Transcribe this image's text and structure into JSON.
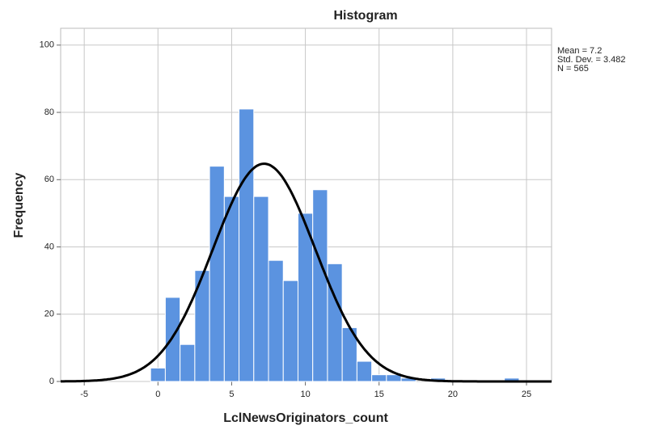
{
  "chart_data": {
    "type": "histogram",
    "title": "Histogram",
    "x_label": "LclNewsOriginators_count",
    "y_label": "Frequency",
    "bins": [
      -0.5,
      0.5,
      1.5,
      2.5,
      3.5,
      4.5,
      5.5,
      6.5,
      7.5,
      8.5,
      9.5,
      10.5,
      11.5,
      12.5,
      13.5,
      14.5,
      15.5,
      16.5,
      17.5,
      18.5,
      19.5,
      20.5,
      21.5,
      22.5,
      23.5,
      24.5
    ],
    "counts": [
      4,
      25,
      11,
      33,
      64,
      55,
      81,
      55,
      36,
      30,
      50,
      57,
      35,
      16,
      6,
      2,
      2,
      1,
      0,
      1,
      0,
      0,
      0,
      0,
      1
    ],
    "color": "#5b93e0",
    "xlim": [
      -6.6,
      26.7
    ],
    "xticks": [
      -5,
      0,
      5,
      10,
      15,
      20,
      25
    ],
    "ylim": [
      0,
      105
    ],
    "yticks": [
      0,
      20,
      40,
      60,
      80,
      100
    ],
    "grid": true,
    "stats_labels": [
      "Mean = 7.2",
      "Std. Dev. = 3.482",
      "N = 565"
    ],
    "normal_curve": {
      "mean": 7.2,
      "sd": 3.482,
      "n": 565,
      "color": "#000000"
    }
  }
}
